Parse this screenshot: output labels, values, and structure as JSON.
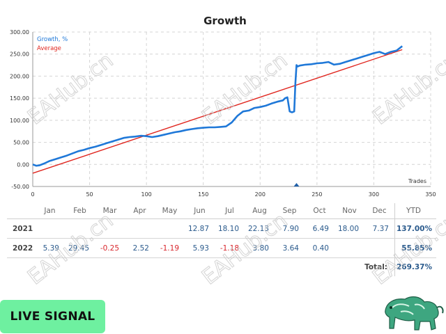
{
  "chart_data": {
    "type": "line",
    "title": "Growth",
    "xlabel": "Trades",
    "ylabel": "",
    "xlim": [
      0,
      350
    ],
    "ylim": [
      -50,
      300
    ],
    "x_ticks": [
      0,
      50,
      100,
      150,
      200,
      250,
      300,
      350
    ],
    "y_ticks": [
      -50,
      0,
      50,
      100,
      150,
      200,
      250,
      300
    ],
    "x_tick_labels": [
      "0",
      "50",
      "100",
      "150",
      "200",
      "250",
      "300",
      "350"
    ],
    "y_tick_labels": [
      "-50.00",
      "0.00",
      "50.00",
      "100.00",
      "150.00",
      "200.00",
      "250.00",
      "300.00"
    ],
    "grid": true,
    "legend_position": "top-left",
    "series": [
      {
        "name": "Growth, %",
        "color": "#1f78d8",
        "x": [
          0,
          3,
          6,
          10,
          15,
          20,
          25,
          30,
          35,
          40,
          45,
          50,
          55,
          60,
          65,
          70,
          75,
          80,
          85,
          90,
          95,
          100,
          105,
          110,
          115,
          120,
          125,
          130,
          135,
          140,
          145,
          150,
          155,
          160,
          165,
          170,
          175,
          180,
          185,
          190,
          195,
          200,
          205,
          210,
          215,
          220,
          222,
          224,
          226,
          228,
          230,
          231,
          232,
          233,
          235,
          240,
          245,
          250,
          255,
          260,
          265,
          270,
          275,
          280,
          285,
          290,
          295,
          300,
          305,
          310,
          315,
          320,
          325
        ],
        "y": [
          0,
          -3,
          -2,
          2,
          8,
          12,
          16,
          20,
          25,
          30,
          33,
          37,
          40,
          44,
          48,
          52,
          56,
          60,
          62,
          63,
          65,
          64,
          62,
          64,
          67,
          70,
          73,
          75,
          78,
          80,
          82,
          83,
          84,
          84,
          85,
          86,
          95,
          110,
          120,
          122,
          128,
          130,
          133,
          138,
          142,
          145,
          150,
          152,
          120,
          118,
          120,
          185,
          225,
          222,
          224,
          226,
          227,
          229,
          230,
          232,
          226,
          228,
          232,
          236,
          240,
          244,
          248,
          252,
          255,
          250,
          255,
          258,
          268
        ]
      },
      {
        "name": "Average",
        "color": "#e0261f",
        "x": [
          0,
          325
        ],
        "y": [
          -20,
          260
        ]
      }
    ],
    "annotations": [
      "Average start ≈ -20",
      "marker at x≈232"
    ]
  },
  "watermark": {
    "text": "EAHub.cn"
  },
  "table": {
    "months": [
      "Jan",
      "Feb",
      "Mar",
      "Apr",
      "May",
      "Jun",
      "Jul",
      "Aug",
      "Sep",
      "Oct",
      "Nov",
      "Dec"
    ],
    "ytd_label": "YTD",
    "rows": [
      {
        "year": "2021",
        "values": [
          "",
          "",
          "",
          "",
          "",
          "12.87",
          "18.10",
          "22.13",
          "7.90",
          "6.49",
          "18.00",
          "7.37"
        ],
        "ytd": "137.00%"
      },
      {
        "year": "2022",
        "values": [
          "5.39",
          "29.45",
          "-0.25",
          "2.52",
          "-1.19",
          "5.93",
          "-1.18",
          "3.80",
          "3.64",
          "0.40",
          "",
          ""
        ],
        "ytd": "55.85%"
      }
    ],
    "total_label": "Total:",
    "total_value": "269.37%"
  },
  "live_signal": {
    "label": "LIVE SIGNAL"
  },
  "colors": {
    "growth": "#1f78d8",
    "average": "#e0261f",
    "positive": "#2a5a8c",
    "negative": "#d8262c",
    "button": "#6ef0a0"
  }
}
